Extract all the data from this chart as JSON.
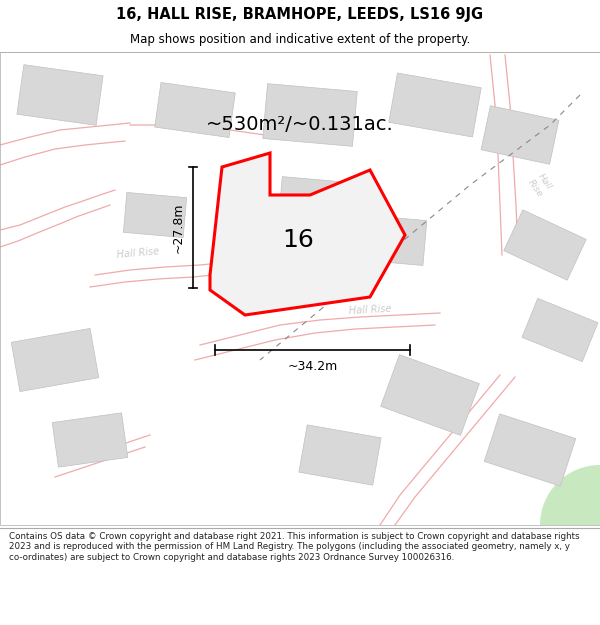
{
  "title_line1": "16, HALL RISE, BRAMHOPE, LEEDS, LS16 9JG",
  "title_line2": "Map shows position and indicative extent of the property.",
  "footer_text": "Contains OS data © Crown copyright and database right 2021. This information is subject to Crown copyright and database rights 2023 and is reproduced with the permission of HM Land Registry. The polygons (including the associated geometry, namely x, y co-ordinates) are subject to Crown copyright and database rights 2023 Ordnance Survey 100026316.",
  "area_label": "~530m²/~0.131ac.",
  "width_label": "~34.2m",
  "height_label": "~27.8m",
  "number_label": "16",
  "bg_color": "#ffffff",
  "map_bg": "#ffffff",
  "property_color": "#ff0000",
  "road_color": "#f0aaaa",
  "building_color": "#d8d8d8",
  "building_edge": "#c0c0c0",
  "road_label_color": "#cccccc",
  "dashed_line_color": "#aaaaaa",
  "dim_color": "#000000"
}
